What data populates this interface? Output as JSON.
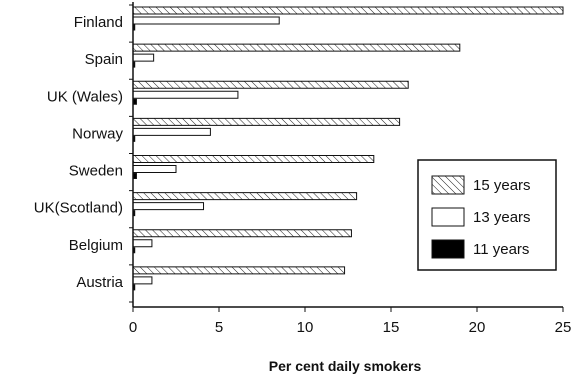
{
  "chart_data": {
    "type": "bar",
    "orientation": "horizontal",
    "categories": [
      "Finland",
      "Spain",
      "UK (Wales)",
      "Norway",
      "Sweden",
      "UK(Scotland)",
      "Belgium",
      "Austria"
    ],
    "series": [
      {
        "name": "15 years",
        "values": [
          25,
          19,
          16,
          15.5,
          14,
          13,
          12.7,
          12.3
        ],
        "fill": "hatch"
      },
      {
        "name": "13 years",
        "values": [
          8.5,
          1.2,
          6.1,
          4.5,
          2.5,
          4.1,
          1.1,
          1.1
        ],
        "fill": "white"
      },
      {
        "name": "11 years",
        "values": [
          0.1,
          0.1,
          0.2,
          0.1,
          0.2,
          0.1,
          0.1,
          0.1
        ],
        "fill": "black"
      }
    ],
    "xlabel": "Per cent daily smokers",
    "ylabel": "",
    "xlim": [
      0,
      25
    ],
    "xticks": [
      "0",
      "5",
      "10",
      "15",
      "20",
      "25"
    ],
    "grid": false,
    "legend_position": "right"
  }
}
